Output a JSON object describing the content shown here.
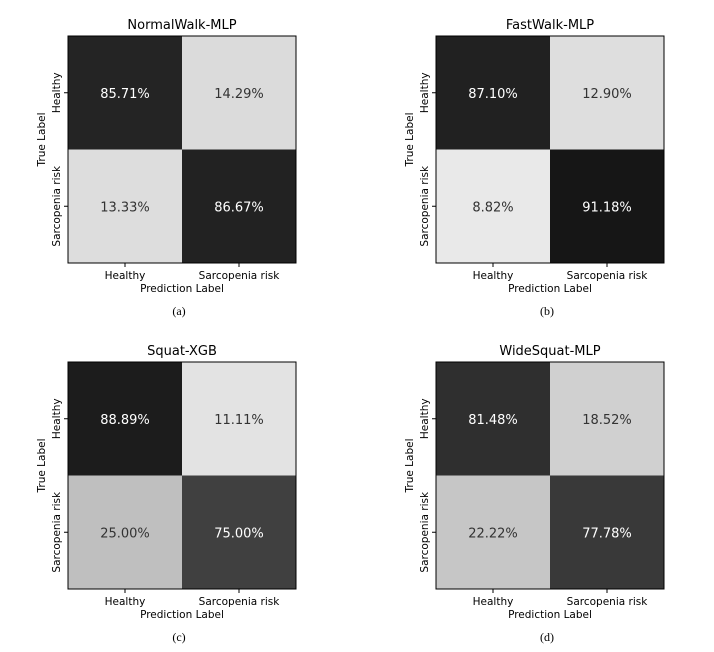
{
  "chart_data": [
    {
      "type": "heatmap",
      "title": "NormalWalk-MLP",
      "caption": "(a)",
      "xlabel": "Prediction Label",
      "ylabel": "True Label",
      "x_categories": [
        "Healthy",
        "Sarcopenia risk"
      ],
      "y_categories": [
        "Healthy",
        "Sarcopenia risk"
      ],
      "values": [
        [
          85.71,
          14.29
        ],
        [
          13.33,
          86.67
        ]
      ],
      "labels": [
        [
          "85.71%",
          "14.29%"
        ],
        [
          "13.33%",
          "86.67%"
        ]
      ],
      "colormap": "greys_reversed",
      "vmin": 0,
      "vmax": 100
    },
    {
      "type": "heatmap",
      "title": "FastWalk-MLP",
      "caption": "(b)",
      "xlabel": "Prediction Label",
      "ylabel": "True Label",
      "x_categories": [
        "Healthy",
        "Sarcopenia risk"
      ],
      "y_categories": [
        "Healthy",
        "Sarcopenia risk"
      ],
      "values": [
        [
          87.1,
          12.9
        ],
        [
          8.82,
          91.18
        ]
      ],
      "labels": [
        [
          "87.10%",
          "12.90%"
        ],
        [
          "8.82%",
          "91.18%"
        ]
      ],
      "colormap": "greys_reversed",
      "vmin": 0,
      "vmax": 100
    },
    {
      "type": "heatmap",
      "title": "Squat-XGB",
      "caption": "(c)",
      "xlabel": "Prediction Label",
      "ylabel": "True Label",
      "x_categories": [
        "Healthy",
        "Sarcopenia risk"
      ],
      "y_categories": [
        "Healthy",
        "Sarcopenia risk"
      ],
      "values": [
        [
          88.89,
          11.11
        ],
        [
          25.0,
          75.0
        ]
      ],
      "labels": [
        [
          "88.89%",
          "11.11%"
        ],
        [
          "25.00%",
          "75.00%"
        ]
      ],
      "colormap": "greys_reversed",
      "vmin": 0,
      "vmax": 100
    },
    {
      "type": "heatmap",
      "title": "WideSquat-MLP",
      "caption": "(d)",
      "xlabel": "Prediction Label",
      "ylabel": "True Label",
      "x_categories": [
        "Healthy",
        "Sarcopenia risk"
      ],
      "y_categories": [
        "Healthy",
        "Sarcopenia risk"
      ],
      "values": [
        [
          81.48,
          18.52
        ],
        [
          22.22,
          77.78
        ]
      ],
      "labels": [
        [
          "81.48%",
          "18.52%"
        ],
        [
          "22.22%",
          "77.78%"
        ]
      ],
      "colormap": "greys_reversed",
      "vmin": 0,
      "vmax": 100
    }
  ]
}
